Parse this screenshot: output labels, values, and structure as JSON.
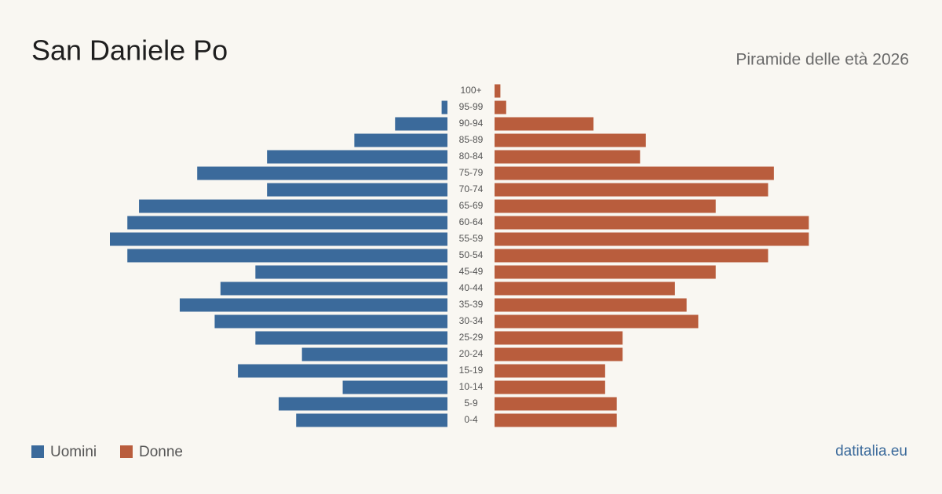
{
  "chart_data": {
    "type": "pyramid",
    "title": "San Daniele Po",
    "subtitle": "Piramide delle età 2026",
    "source": "datitalia.eu",
    "categories": [
      "100+",
      "95-99",
      "90-94",
      "85-89",
      "80-84",
      "75-79",
      "70-74",
      "65-69",
      "60-64",
      "55-59",
      "50-54",
      "45-49",
      "40-44",
      "35-39",
      "30-34",
      "25-29",
      "20-24",
      "15-19",
      "10-14",
      "5-9",
      "0-4"
    ],
    "series": [
      {
        "name": "Uomini",
        "color": "#3b6a9b",
        "values": [
          0,
          1,
          9,
          16,
          31,
          43,
          31,
          53,
          55,
          58,
          55,
          33,
          39,
          46,
          40,
          33,
          25,
          36,
          18,
          29,
          26
        ]
      },
      {
        "name": "Donne",
        "color": "#b95d3d",
        "values": [
          1,
          2,
          17,
          26,
          25,
          48,
          47,
          38,
          54,
          54,
          47,
          38,
          31,
          33,
          35,
          22,
          22,
          19,
          19,
          21,
          21
        ]
      }
    ]
  }
}
